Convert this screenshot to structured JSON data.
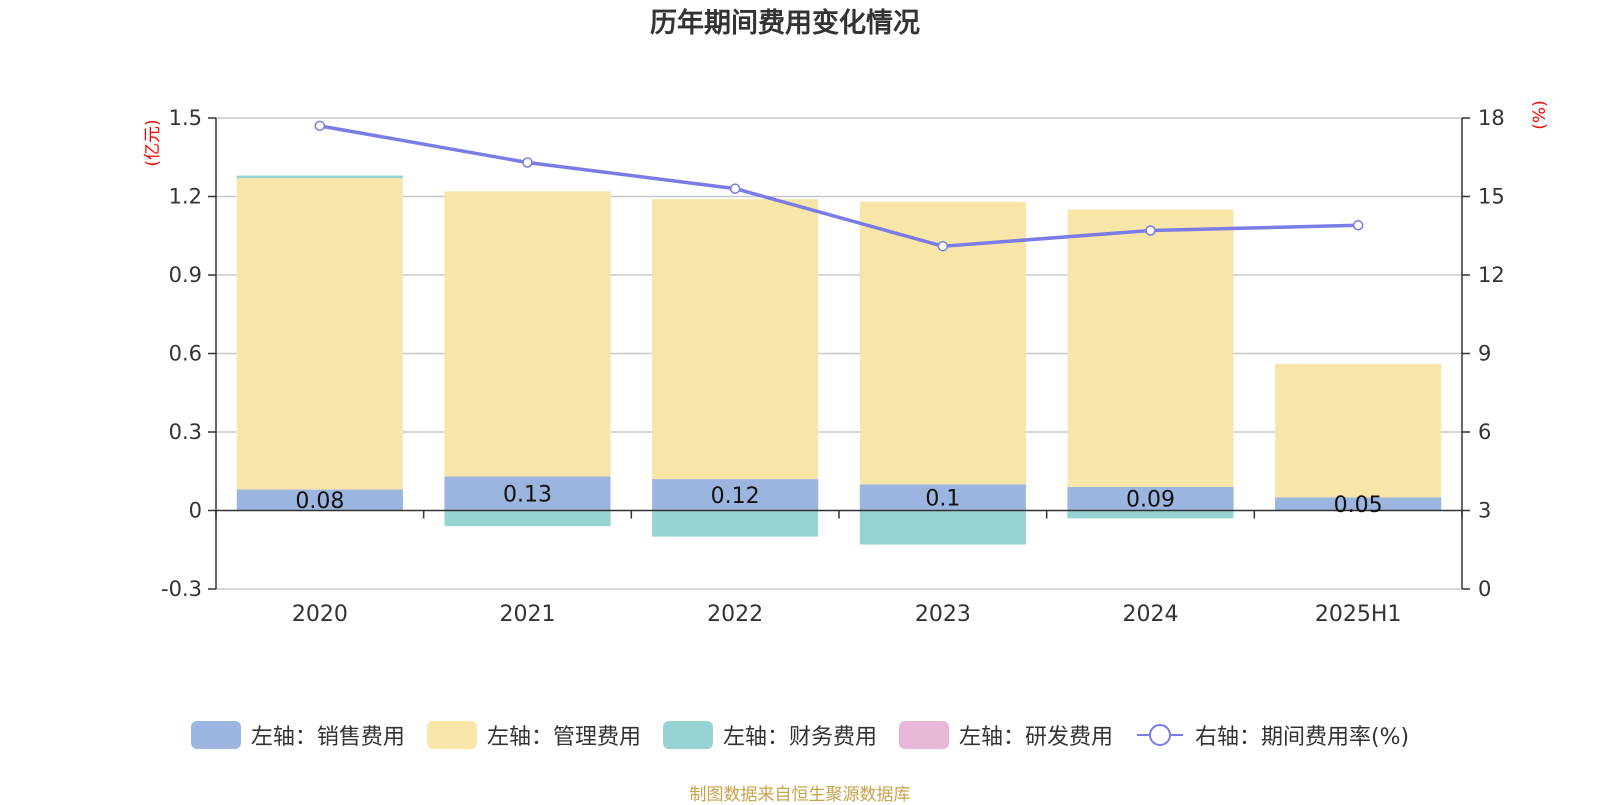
{
  "chart_data": {
    "type": "bar",
    "title": "历年期间费用变化情况",
    "categories": [
      "2020",
      "2021",
      "2022",
      "2023",
      "2024",
      "2025H1"
    ],
    "left_axis": {
      "unit_label": "(亿元)",
      "ylim": [
        -0.3,
        1.5
      ],
      "ticks": [
        -0.3,
        0,
        0.3,
        0.6,
        0.9,
        1.2,
        1.5
      ],
      "tick_labels": [
        "-0.3",
        "0",
        "0.3",
        "0.6",
        "0.9",
        "1.2",
        "1.5"
      ]
    },
    "right_axis": {
      "unit_label": "(%)",
      "ylim": [
        0,
        18
      ],
      "ticks": [
        0,
        3,
        6,
        9,
        12,
        15,
        18
      ],
      "tick_labels": [
        "0",
        "3",
        "6",
        "9",
        "12",
        "15",
        "18"
      ]
    },
    "series": [
      {
        "name": "左轴：销售费用",
        "axis": "left",
        "kind": "bar",
        "color": "#9bb5e0",
        "values": [
          0.08,
          0.13,
          0.12,
          0.1,
          0.09,
          0.05
        ],
        "data_labels": [
          "0.08",
          "0.13",
          "0.12",
          "0.1",
          "0.09",
          "0.05"
        ]
      },
      {
        "name": "左轴：管理费用",
        "axis": "left",
        "kind": "bar",
        "color": "#f8e6a8",
        "values": [
          1.19,
          1.09,
          1.07,
          1.08,
          1.06,
          0.51
        ]
      },
      {
        "name": "左轴：财务费用",
        "axis": "left",
        "kind": "bar",
        "color": "#97d3d3",
        "values": [
          0.01,
          -0.06,
          -0.1,
          -0.13,
          -0.03,
          0.0
        ]
      },
      {
        "name": "左轴：研发费用",
        "axis": "left",
        "kind": "bar",
        "color": "#e8b7d8",
        "values": [
          0,
          0,
          0,
          0,
          0,
          0
        ]
      },
      {
        "name": "右轴：期间费用率(%)",
        "axis": "right",
        "kind": "line",
        "color": "#7b7be8",
        "values": [
          17.7,
          16.3,
          15.3,
          13.1,
          13.7,
          13.9
        ]
      }
    ],
    "legend_position": "bottom",
    "grid": true
  },
  "source_text": "制图数据来自恒生聚源数据库"
}
